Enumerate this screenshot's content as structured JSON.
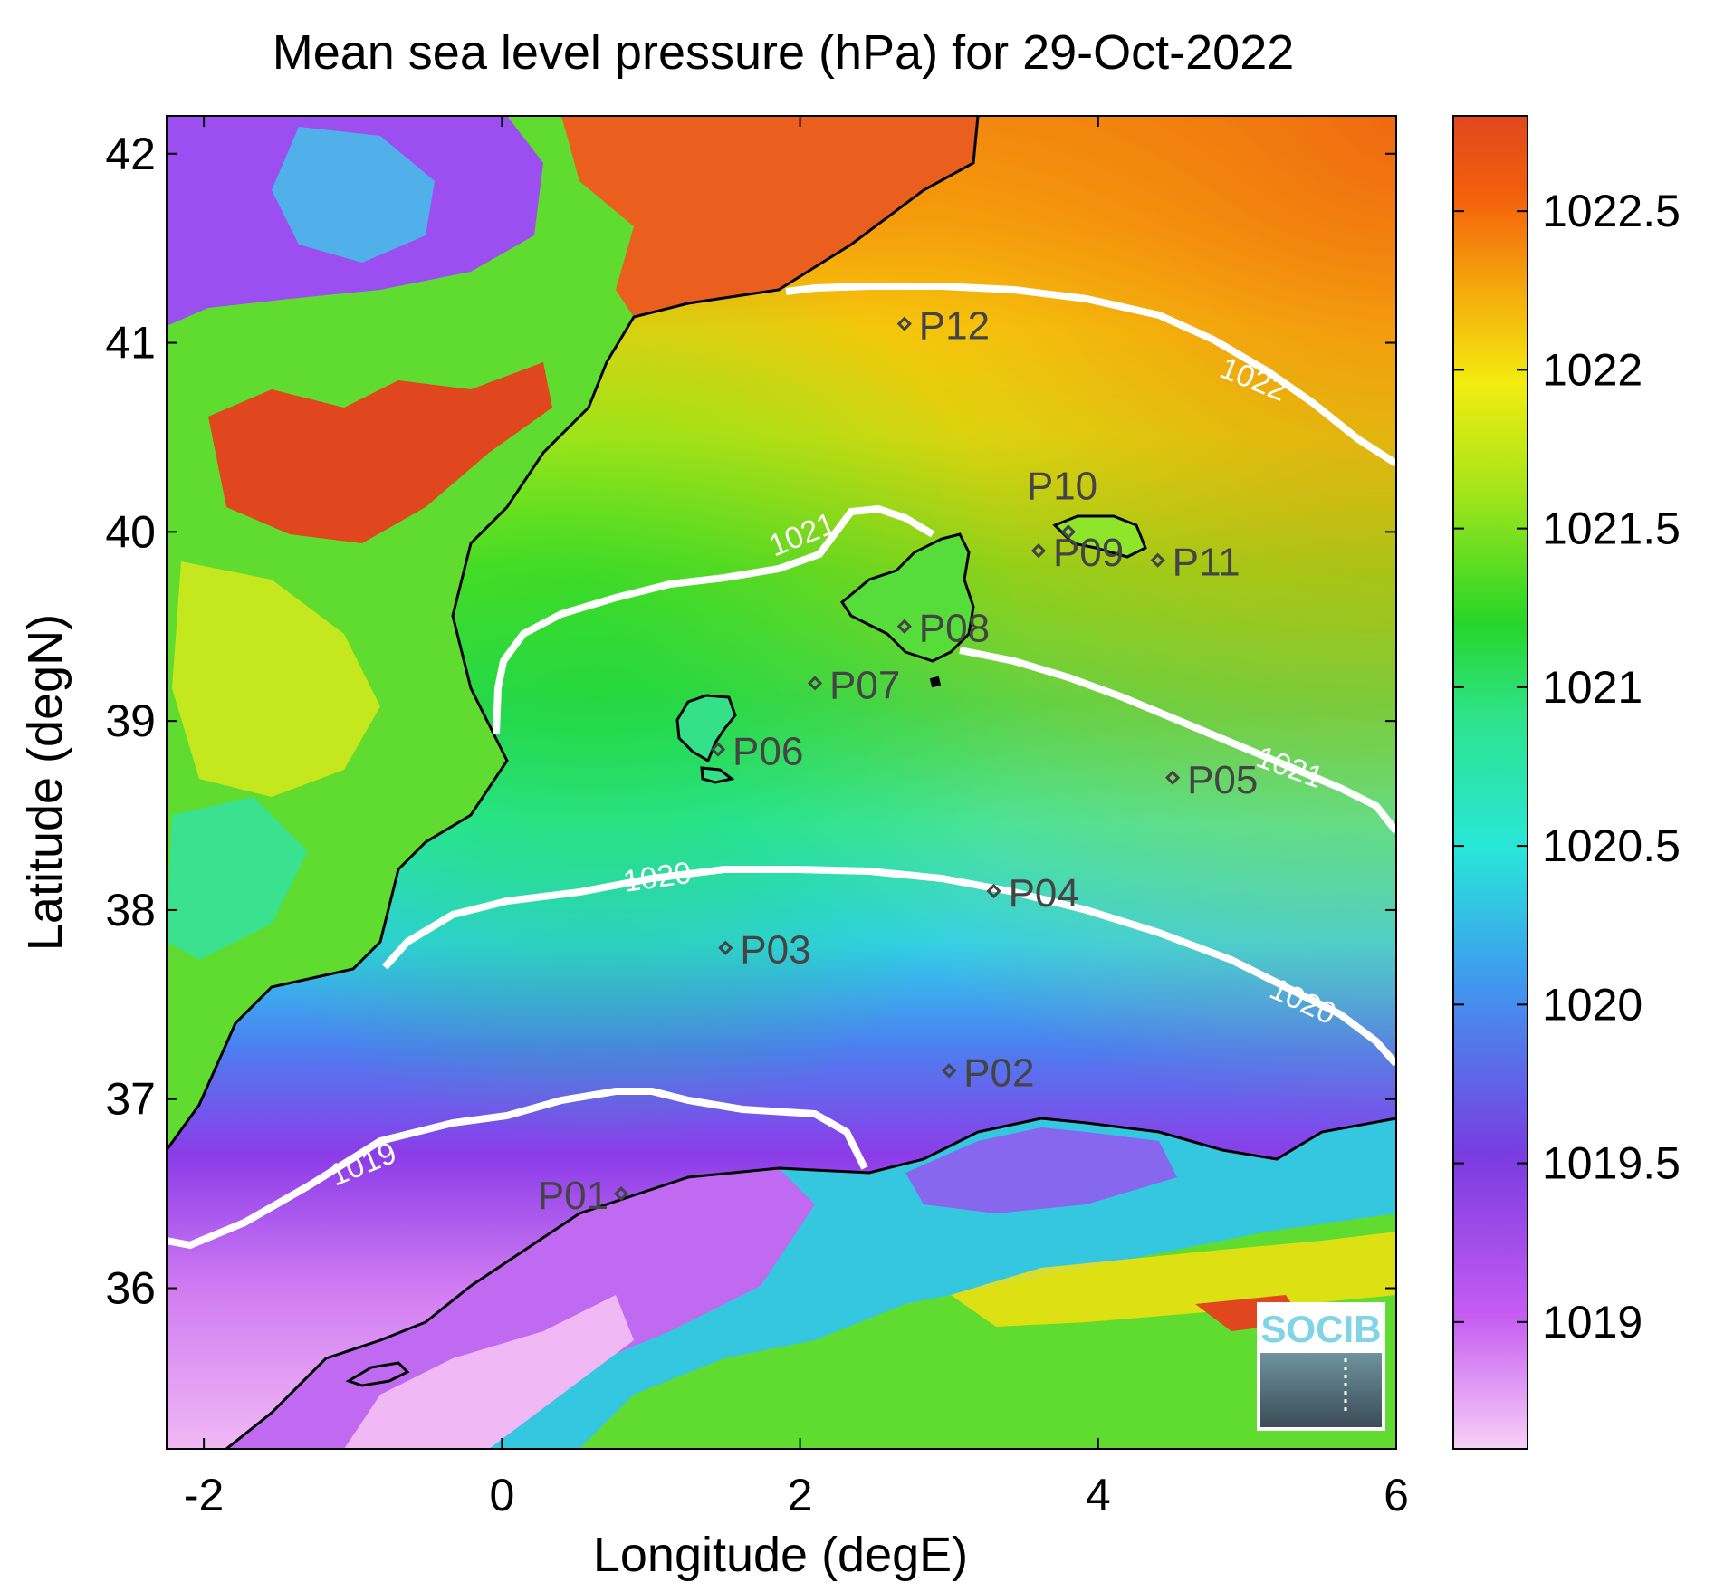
{
  "title": "Mean sea level pressure (hPa) for 29-Oct-2022",
  "xlabel": "Longitude (degE)",
  "ylabel": "Latitude (degN)",
  "x_ticks": [
    "-2",
    "0",
    "2",
    "4",
    "6"
  ],
  "y_ticks": [
    "36",
    "37",
    "38",
    "39",
    "40",
    "41",
    "42"
  ],
  "colorbar": {
    "min": 1018.6,
    "max": 1022.8,
    "ticks": [
      "1019",
      "1019.5",
      "1020",
      "1020.5",
      "1021",
      "1021.5",
      "1022",
      "1022.5"
    ]
  },
  "colors": {
    "low": "#f2c8f5",
    "mid_low": "#9b36f0",
    "mid": "#24d72b",
    "mid_high": "#f2e80c",
    "high": "#e04a1f",
    "contour": "#ffffff",
    "coast": "#000000"
  },
  "contour_labels": [
    "1019",
    "1020",
    "1020",
    "1021",
    "1021",
    "1022"
  ],
  "stations": [
    {
      "id": "P01",
      "lon": 0.8,
      "lat": 36.5
    },
    {
      "id": "P02",
      "lon": 3.0,
      "lat": 37.15
    },
    {
      "id": "P03",
      "lon": 1.5,
      "lat": 37.8
    },
    {
      "id": "P04",
      "lon": 3.3,
      "lat": 38.1
    },
    {
      "id": "P05",
      "lon": 4.5,
      "lat": 38.7
    },
    {
      "id": "P06",
      "lon": 1.45,
      "lat": 38.85
    },
    {
      "id": "P07",
      "lon": 2.1,
      "lat": 39.2
    },
    {
      "id": "P08",
      "lon": 2.7,
      "lat": 39.5
    },
    {
      "id": "P09",
      "lon": 3.6,
      "lat": 39.9
    },
    {
      "id": "P10",
      "lon": 3.8,
      "lat": 40.0
    },
    {
      "id": "P11",
      "lon": 4.4,
      "lat": 39.85
    },
    {
      "id": "P12",
      "lon": 2.7,
      "lat": 41.1
    }
  ],
  "logo": {
    "text": "SOCIB"
  }
}
